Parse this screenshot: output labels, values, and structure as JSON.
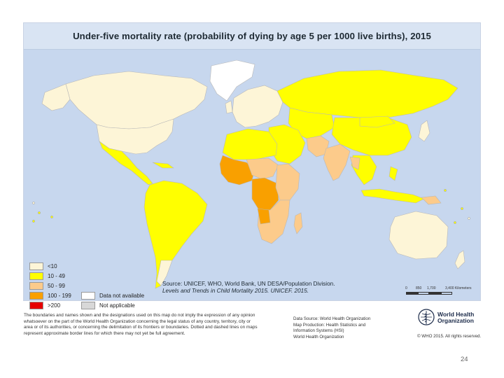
{
  "title": "Under-five mortality rate (probability of dying by age 5 per 1000 live births), 2015",
  "legend": [
    {
      "label": "<10",
      "color": "#fdf5d7"
    },
    {
      "label": "10 - 49",
      "color": "#ffff00"
    },
    {
      "label": "50 - 99",
      "color": "#fccb8b"
    },
    {
      "label": "100 - 199",
      "color": "#f9a000"
    },
    {
      "label": ">200",
      "color": "#e60000"
    },
    {
      "label": "Data not available",
      "color": "#ffffff"
    },
    {
      "label": "Not applicable",
      "color": "#d8d8d8"
    }
  ],
  "colors": {
    "ocean": "#c7d7ee",
    "title_band": "#d9e4f3",
    "yellow": "#ffff00",
    "light_orange": "#fccb8b",
    "orange": "#f9a000",
    "cream": "#fdf5d7",
    "white": "#ffffff",
    "gray": "#d8d8d8"
  },
  "source": {
    "line1": "Source: UNICEF, WHO, World Bank, UN DESA/Population Division.",
    "line2": "Levels and Trends in Child Mortality 2015. UNICEF. 2015."
  },
  "scale": {
    "labels": [
      "0",
      "850",
      "1,700",
      "3,400 Kilometers"
    ]
  },
  "disclaimer": "The boundaries and names shown and the designations used on this map do not imply the expression of any opinion whatsoever on the part of the World Health Organization concerning the legal status of any country, territory, city or area or of its authorities, or concerning the delimitation of its frontiers or boundaries. Dotted and dashed lines on maps represent approximate border lines for which there may not yet be full agreement.",
  "data_source": {
    "line1": "Data Source: World Health Organization",
    "line2": "Map Production: Health Statistics and",
    "line3": "Information Systems (HSI)",
    "line4": "World Health Organization"
  },
  "who": {
    "name_line1": "World Health",
    "name_line2": "Organization",
    "copyright": "© WHO 2015. All rights reserved."
  },
  "page_number": "24"
}
